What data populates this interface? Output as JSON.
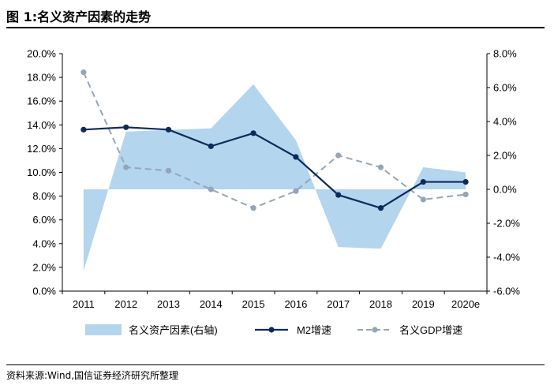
{
  "figure": {
    "title": "图 1:名义资产因素的走势",
    "source": "资料来源:Wind,国信证券经济研究所整理"
  },
  "chart_data": {
    "type": "line",
    "categories": [
      "2011",
      "2012",
      "2013",
      "2014",
      "2015",
      "2016",
      "2017",
      "2018",
      "2019",
      "2020e"
    ],
    "left_axis": {
      "ylim": [
        0,
        20
      ],
      "ticks": [
        "0.0%",
        "2.0%",
        "4.0%",
        "6.0%",
        "8.0%",
        "10.0%",
        "12.0%",
        "14.0%",
        "16.0%",
        "18.0%",
        "20.0%"
      ]
    },
    "right_axis": {
      "ylim": [
        -6,
        8
      ],
      "ticks": [
        "-6.0%",
        "-4.0%",
        "-2.0%",
        "0.0%",
        "2.0%",
        "4.0%",
        "6.0%",
        "8.0%"
      ]
    },
    "series": [
      {
        "name": "名义资产因素(右轴)",
        "type": "area",
        "axis": "right",
        "color": "#b4d5ee",
        "values": [
          -4.8,
          3.4,
          3.5,
          3.6,
          6.2,
          2.9,
          -3.4,
          -3.5,
          1.3,
          1.0
        ]
      },
      {
        "name": "M2增速",
        "type": "line",
        "axis": "left",
        "color": "#0c2a5a",
        "values": [
          13.6,
          13.8,
          13.6,
          12.2,
          13.3,
          11.3,
          8.1,
          7.0,
          9.2,
          9.2
        ]
      },
      {
        "name": "名义GDP增速",
        "type": "line",
        "axis": "right",
        "dashed": true,
        "color": "#95a5b8",
        "values": [
          6.9,
          1.3,
          1.1,
          0.0,
          -1.1,
          -0.1,
          2.0,
          1.3,
          -0.6,
          -0.3
        ]
      }
    ],
    "grid": false,
    "legend_position": "bottom"
  }
}
